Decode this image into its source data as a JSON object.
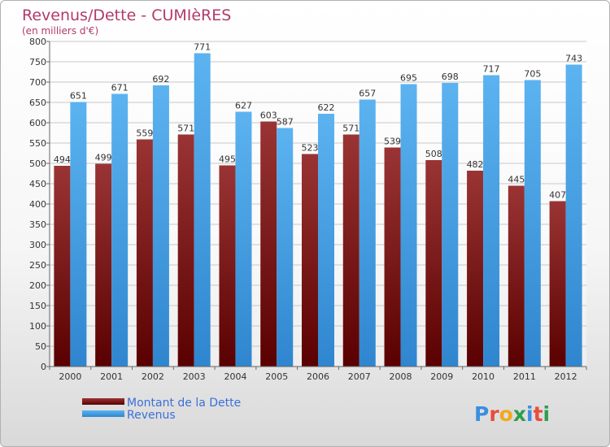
{
  "chart_data": {
    "type": "bar",
    "title": "Revenus/Dette - CUMIèRES",
    "subtitle": "(en milliers d'€)",
    "categories": [
      "2000",
      "2001",
      "2002",
      "2003",
      "2004",
      "2005",
      "2006",
      "2007",
      "2008",
      "2009",
      "2010",
      "2011",
      "2012"
    ],
    "series": [
      {
        "name": "Montant de la Dette",
        "values": [
          494,
          499,
          559,
          571,
          495,
          603,
          523,
          571,
          539,
          508,
          482,
          445,
          407
        ],
        "color": "#7a1c1c"
      },
      {
        "name": "Revenus",
        "values": [
          651,
          671,
          692,
          771,
          627,
          587,
          622,
          657,
          695,
          698,
          717,
          705,
          743
        ],
        "color": "#4aa3e6"
      }
    ],
    "ylim": [
      0,
      800
    ],
    "yticks": [
      0,
      50,
      100,
      150,
      200,
      250,
      300,
      350,
      400,
      450,
      500,
      550,
      600,
      650,
      700,
      750,
      800
    ],
    "grid": true,
    "legend_position": "bottom-left"
  },
  "brand": {
    "logo_text": "Proxiti"
  }
}
